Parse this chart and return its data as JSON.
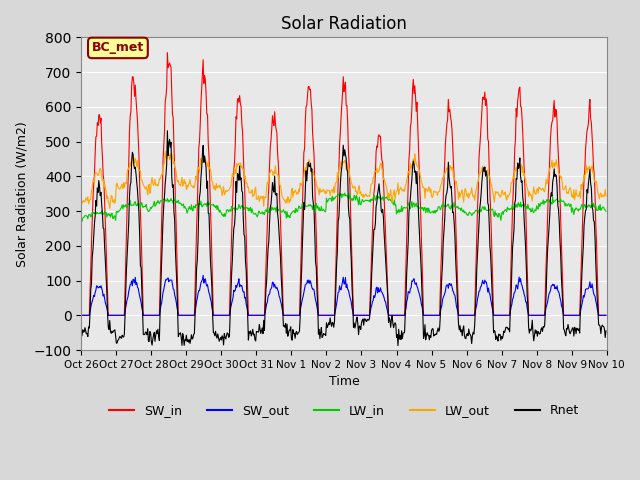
{
  "title": "Solar Radiation",
  "xlabel": "Time",
  "ylabel": "Solar Radiation (W/m2)",
  "ylim": [
    -100,
    800
  ],
  "plot_bg_color": "#e8e8e8",
  "annotation_text": "BC_met",
  "annotation_bg": "#ffff99",
  "annotation_border": "#8b0000",
  "series_colors": {
    "SW_in": "#ff0000",
    "SW_out": "#0000ff",
    "LW_in": "#00cc00",
    "LW_out": "#ffa500",
    "Rnet": "#000000"
  },
  "x_tick_labels": [
    "Oct 26",
    "Oct 27",
    "Oct 28",
    "Oct 29",
    "Oct 30",
    "Oct 31",
    "Nov 1",
    "Nov 2",
    "Nov 3",
    "Nov 4",
    "Nov 5",
    "Nov 6",
    "Nov 7",
    "Nov 8",
    "Nov 9",
    "Nov 10"
  ],
  "n_days": 15,
  "dt_hours": 0.5,
  "sw_in_peaks": [
    575,
    675,
    730,
    685,
    625,
    580,
    665,
    655,
    520,
    655,
    600,
    640,
    640,
    600,
    580
  ],
  "base_lw_in": [
    275,
    300,
    310,
    300,
    290,
    285,
    295,
    325,
    320,
    295,
    295,
    285,
    295,
    310,
    295
  ],
  "base_lw_out": [
    330,
    370,
    380,
    370,
    355,
    335,
    355,
    360,
    345,
    360,
    350,
    345,
    350,
    360,
    345
  ]
}
